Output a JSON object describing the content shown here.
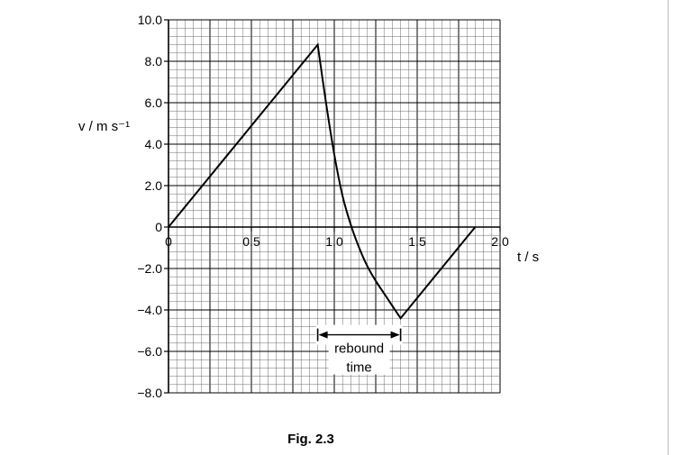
{
  "chart_data": {
    "type": "line",
    "title": "",
    "xlabel": "t / s",
    "ylabel": "v / m s⁻¹",
    "xlim": [
      0,
      2.0
    ],
    "ylim": [
      -8.0,
      10.0
    ],
    "x_ticks": [
      0,
      0.5,
      1.0,
      1.5,
      2.0
    ],
    "x_tick_labels": [
      "0",
      "0.5",
      "1.0",
      "1.5",
      "2.0"
    ],
    "y_ticks": [
      10,
      8,
      6,
      4,
      2,
      0,
      -2,
      -4,
      -6,
      -8
    ],
    "y_tick_labels": [
      "10.0",
      "8.0",
      "6.0",
      "4.0",
      "2.0",
      "0",
      "−2.0",
      "−4.0",
      "−6.0",
      "−8.0"
    ],
    "grid": true,
    "series": [
      {
        "x": [
          0,
          0.9,
          0.95,
          1.0,
          1.05,
          1.1,
          1.15,
          1.2,
          1.25,
          1.3,
          1.35,
          1.4,
          1.85
        ],
        "y": [
          0,
          8.8,
          6.0,
          3.5,
          1.5,
          0.1,
          -1.0,
          -1.9,
          -2.6,
          -3.2,
          -3.8,
          -4.4,
          0
        ]
      }
    ],
    "annotations": [
      {
        "text_line1": "rebound",
        "text_line2": "time",
        "x_start": 0.9,
        "x_end": 1.4,
        "y": -5.2
      }
    ]
  },
  "figure": {
    "caption": "Fig. 2.3"
  },
  "colors": {
    "grid_minor": "#6a6a6a",
    "grid_major": "#000000",
    "line": "#000000"
  }
}
